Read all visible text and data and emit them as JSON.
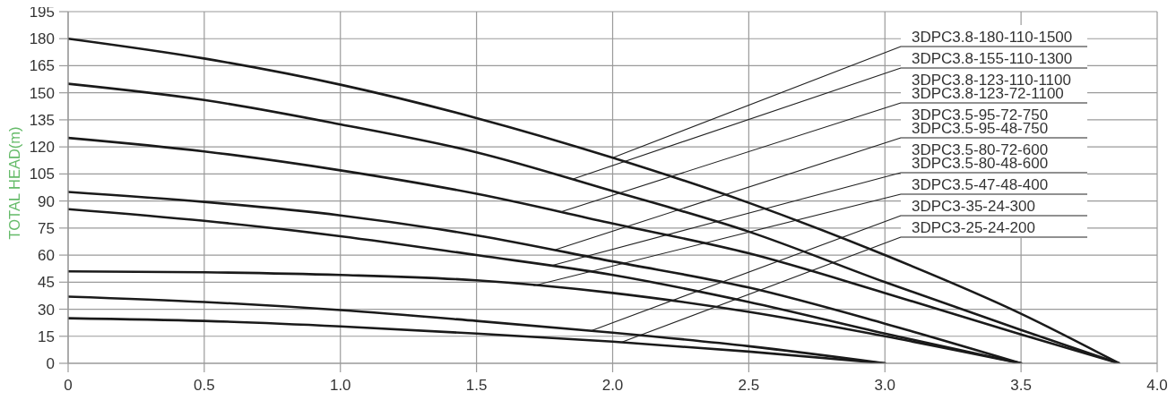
{
  "chart_data": {
    "type": "line",
    "ylabel": "TOTAL HEAD(m)",
    "xlim": [
      0,
      4
    ],
    "ylim": [
      0,
      195
    ],
    "xticks": [
      0,
      0.5,
      {
        "value": 1,
        "label": "1.0"
      },
      1.5,
      {
        "value": 2,
        "label": "2.0"
      },
      2.5,
      {
        "value": 3,
        "label": "3.0"
      },
      3.5,
      {
        "value": 4,
        "label": "4.0"
      }
    ],
    "yticks": [
      0,
      15,
      30,
      45,
      60,
      75,
      90,
      105,
      120,
      135,
      150,
      165,
      180,
      195
    ],
    "grid": true,
    "marker": "none",
    "line_style": "solid",
    "series": [
      {
        "color": "#1a1a1a",
        "x": [
          0,
          0.5,
          1,
          1.5,
          2,
          2.5,
          3,
          3.5,
          3.86
        ],
        "values": [
          180,
          169,
          154.5,
          136,
          114,
          89,
          60,
          27.5,
          0
        ]
      },
      {
        "color": "#1a1a1a",
        "x": [
          0,
          0.5,
          1,
          1.5,
          2,
          2.5,
          3,
          3.5,
          3.86
        ],
        "values": [
          155,
          146,
          132.5,
          117,
          95.5,
          73,
          45,
          18.5,
          0
        ]
      },
      {
        "color": "#1a1a1a",
        "x": [
          0,
          0.5,
          1,
          1.5,
          2,
          2.5,
          3,
          3.5,
          3.86
        ],
        "values": [
          125,
          117.5,
          107,
          94,
          77.5,
          61,
          39,
          16,
          0
        ]
      },
      {
        "color": "#1a1a1a",
        "x": [
          0,
          0.5,
          1,
          1.5,
          2,
          2.5,
          3,
          3.5
        ],
        "values": [
          95,
          89.5,
          82,
          71,
          56.5,
          42,
          22,
          0
        ]
      },
      {
        "color": "#1a1a1a",
        "x": [
          0,
          0.5,
          1,
          1.5,
          2,
          2.5,
          3,
          3.5
        ],
        "values": [
          85.5,
          79,
          70.5,
          60,
          49,
          34,
          16.5,
          0
        ]
      },
      {
        "color": "#1a1a1a",
        "x": [
          0,
          0.5,
          1,
          1.5,
          2,
          2.5,
          3,
          3.5
        ],
        "values": [
          51,
          50.5,
          49,
          46,
          39,
          28.5,
          15,
          0
        ]
      },
      {
        "color": "#1a1a1a",
        "x": [
          0,
          0.5,
          1,
          1.5,
          2,
          2.5,
          3
        ],
        "values": [
          37,
          34,
          29.5,
          23.5,
          17,
          9.5,
          0
        ]
      },
      {
        "color": "#1a1a1a",
        "x": [
          0,
          0.5,
          1,
          1.5,
          2,
          2.5,
          3
        ],
        "values": [
          25,
          23.5,
          20.5,
          16.5,
          12,
          6.5,
          0
        ]
      }
    ],
    "annotations": [
      {
        "text": "3DPC3.8-180-110-1500",
        "x": 2.0,
        "y": 114
      },
      {
        "text": "3DPC3.8-155-110-1300",
        "x": 1.85,
        "y": 102
      },
      {
        "text": "3DPC3.8-123-110-1100\n3DPC3.8-123-72-1100",
        "x": 1.81,
        "y": 84
      },
      {
        "text": "3DPC3.5-95-72-750\n3DPC3.5-95-48-750",
        "x": 1.79,
        "y": 63
      },
      {
        "text": "3DPC3.5-80-72-600\n3DPC3.5-80-48-600",
        "x": 1.77,
        "y": 54
      },
      {
        "text": "3DPC3.5-47-48-400",
        "x": 1.71,
        "y": 43
      },
      {
        "text": "3DPC3-35-24-300",
        "x": 1.92,
        "y": 18
      },
      {
        "text": "3DPC3-25-24-200",
        "x": 2.03,
        "y": 11.5
      }
    ]
  }
}
